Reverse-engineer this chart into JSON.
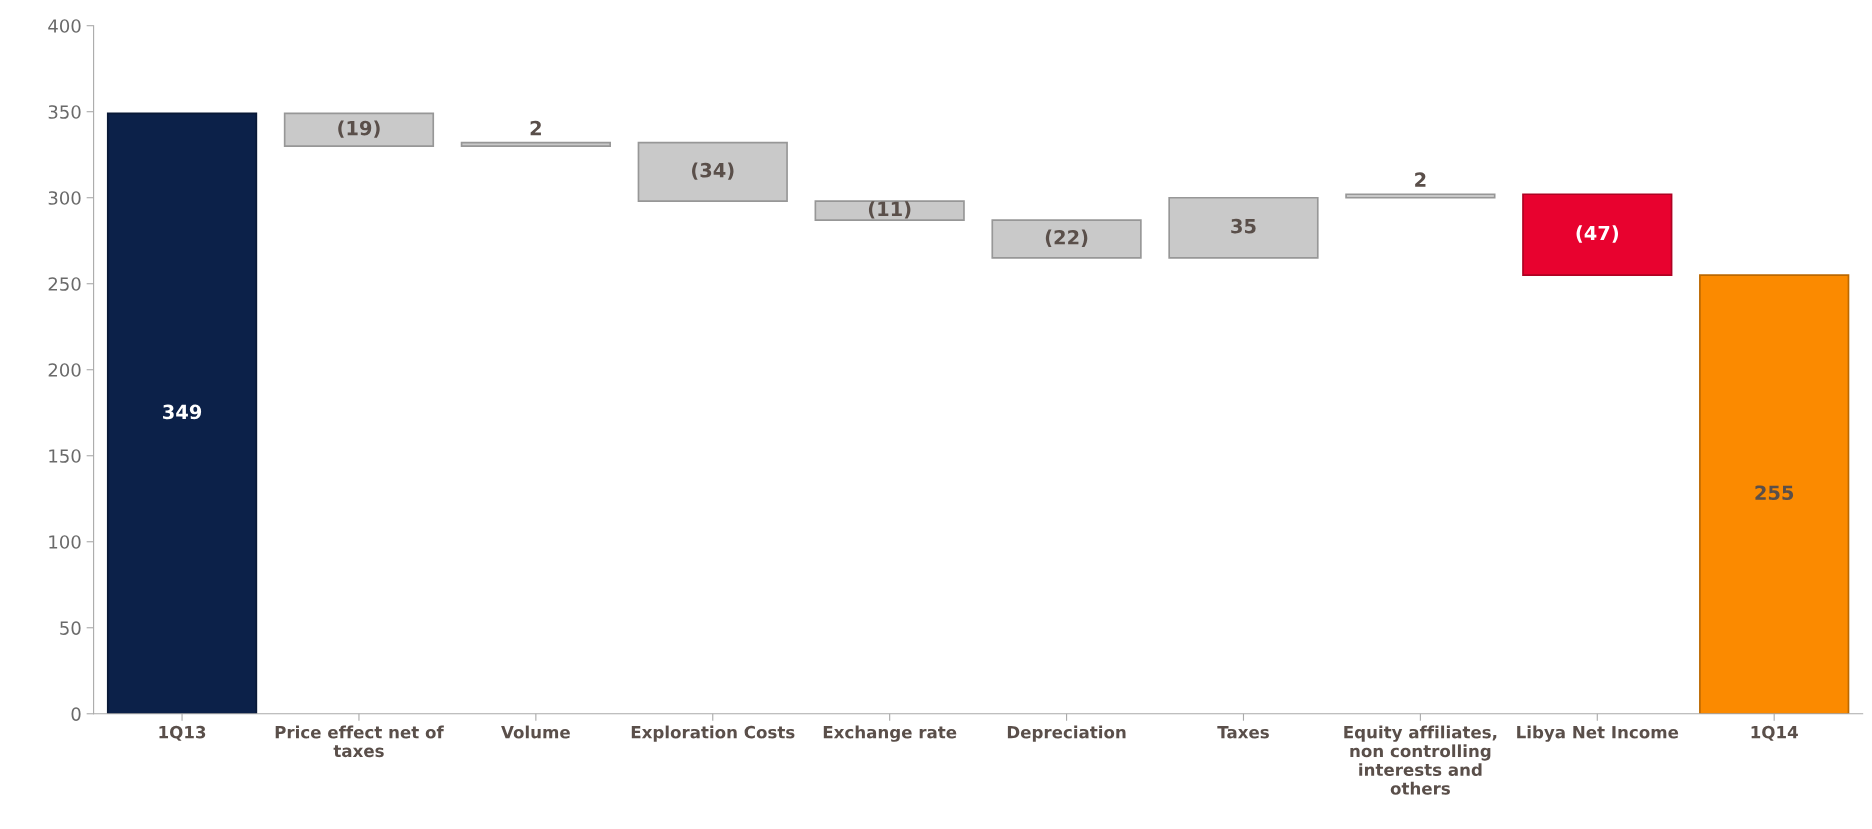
{
  "chart_data": {
    "type": "bar",
    "categories": [
      "1Q13",
      "Price effect net of taxes",
      "Volume",
      "Exploration Costs",
      "Exchange rate",
      "Depreciation",
      "Taxes",
      "Equity affiliates, non controlling interests and others",
      "Libya Net Income",
      "1Q14"
    ],
    "values": [
      349,
      -19,
      2,
      -34,
      -11,
      -22,
      35,
      2,
      -47,
      255
    ],
    "base": [
      0,
      349,
      330,
      332,
      298,
      287,
      265,
      300,
      302,
      0
    ],
    "colors": [
      "#0c2149",
      "#c9c9c9",
      "#c9c9c9",
      "#c9c9c9",
      "#c9c9c9",
      "#c9c9c9",
      "#c9c9c9",
      "#c9c9c9",
      "#e8022f",
      "#fb8a00"
    ],
    "value_labels": [
      "349",
      "(19)",
      "2",
      "(34)",
      "(11)",
      "(22)",
      "35",
      "2",
      "(47)",
      "255"
    ],
    "ylim": [
      0,
      400
    ],
    "yticks": [
      0,
      50,
      100,
      150,
      200,
      250,
      300,
      350,
      400
    ],
    "grid": false
  }
}
